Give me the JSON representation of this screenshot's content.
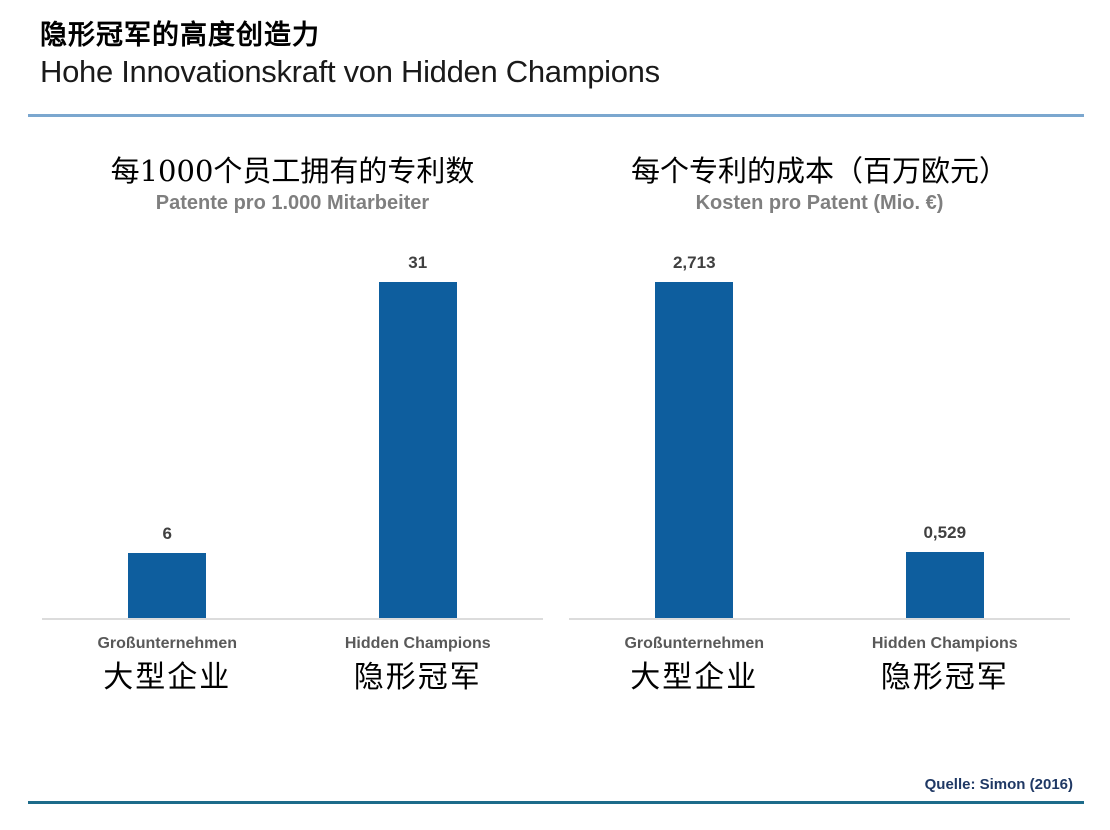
{
  "header": {
    "title_zh": "隐形冠军的高度创造力",
    "title_de": "Hohe Innovationskraft von Hidden Champions"
  },
  "footer": {
    "source": "Quelle: Simon (2016)"
  },
  "colors": {
    "bar": "#0E5E9E",
    "top_rule": "#7BA7CF",
    "bottom_rule": "#1D6B8A",
    "value_label": "#404040",
    "category_label": "#595959",
    "chart_subtitle": "#7F7F7F",
    "source_text": "#1F3864",
    "baseline": "#DCDCDC"
  },
  "chart_data": [
    {
      "type": "bar",
      "title_zh": "每1000个员工拥有的专利数",
      "title_de": "Patente pro 1.000 Mitarbeiter",
      "categories": [
        "Großunternehmen",
        "Hidden Champions"
      ],
      "categories_zh": [
        "大型企业",
        "隐形冠军"
      ],
      "values": [
        6,
        31
      ],
      "value_labels": [
        "6",
        "31"
      ],
      "ylim": [
        0,
        35
      ],
      "grid": false,
      "legend": false
    },
    {
      "type": "bar",
      "title_zh": "每个专利的成本（百万欧元）",
      "title_de": "Kosten pro Patent (Mio. €)",
      "categories": [
        "Großunternehmen",
        "Hidden Champions"
      ],
      "categories_zh": [
        "大型企业",
        "隐形冠军"
      ],
      "values": [
        2.713,
        0.529
      ],
      "value_labels": [
        "2,713",
        "0,529"
      ],
      "ylim": [
        0,
        3.1
      ],
      "grid": false,
      "legend": false
    }
  ]
}
